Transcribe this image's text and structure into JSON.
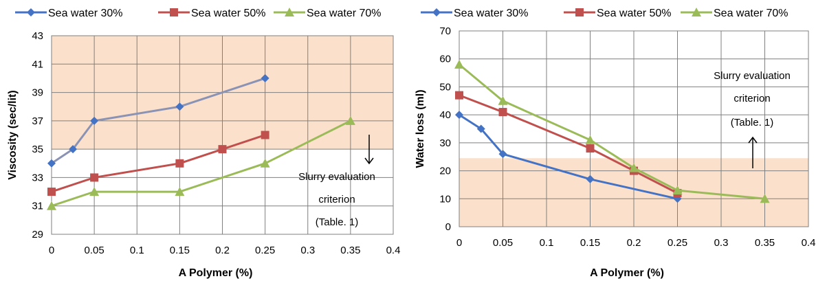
{
  "chart_data": [
    {
      "type": "line",
      "title": "",
      "xlabel": "A Polymer (%)",
      "ylabel": "Viscosity (sec/lit)",
      "xlim": [
        0,
        0.4
      ],
      "ylim": [
        29,
        43
      ],
      "x_ticks": [
        "0",
        "0.05",
        "0.1",
        "0.15",
        "0.2",
        "0.25",
        "0.3",
        "0.35",
        "0.4"
      ],
      "y_ticks": [
        "29",
        "31",
        "33",
        "35",
        "37",
        "39",
        "41",
        "43"
      ],
      "grid": true,
      "legend_position": "top",
      "shaded_region": {
        "y_from": 35,
        "y_to": 43,
        "color": "#fbe0cb"
      },
      "annotation": {
        "lines": [
          "Slurry evaluation",
          "criterion",
          "(Table. 1)"
        ],
        "arrow": "down"
      },
      "series": [
        {
          "name": "Sea water  30%",
          "legend_color": "#4472c4",
          "line_color": "#8b93b5",
          "marker": "diamond",
          "marker_color": "#4472c4",
          "x": [
            0,
            0.025,
            0.05,
            0.15,
            0.25
          ],
          "y": [
            34,
            35,
            37,
            38,
            40
          ]
        },
        {
          "name": "Sea water 50%",
          "legend_color": "#c0504d",
          "line_color": "#c0504d",
          "marker": "square",
          "marker_color": "#c0504d",
          "x": [
            0,
            0.05,
            0.15,
            0.2,
            0.25
          ],
          "y": [
            32,
            33,
            34,
            35,
            36
          ]
        },
        {
          "name": "Sea water 70%",
          "legend_color": "#9bbb59",
          "line_color": "#9bbb59",
          "marker": "triangle",
          "marker_color": "#9bbb59",
          "x": [
            0,
            0.05,
            0.15,
            0.25,
            0.35
          ],
          "y": [
            31,
            32,
            32,
            34,
            37
          ]
        }
      ]
    },
    {
      "type": "line",
      "title": "",
      "xlabel": "A Polymer (%)",
      "ylabel": "Water loss (ml)",
      "xlim": [
        0,
        0.4
      ],
      "ylim": [
        0,
        70
      ],
      "x_ticks": [
        "0",
        "0.05",
        "0.1",
        "0.15",
        "0.2",
        "0.25",
        "0.3",
        "0.35",
        "0.4"
      ],
      "y_ticks": [
        "0",
        "10",
        "20",
        "30",
        "40",
        "50",
        "60",
        "70"
      ],
      "grid": true,
      "legend_position": "top",
      "shaded_region": {
        "y_from": 0,
        "y_to": 24.5,
        "color": "#fbe0cb"
      },
      "annotation": {
        "lines": [
          "Slurry evaluation",
          "criterion",
          "(Table. 1)"
        ],
        "arrow": "up"
      },
      "series": [
        {
          "name": "Sea water  30%",
          "legend_color": "#4472c4",
          "line_color": "#4472c4",
          "marker": "diamond",
          "marker_color": "#4472c4",
          "x": [
            0,
            0.025,
            0.05,
            0.15,
            0.25
          ],
          "y": [
            40,
            35,
            26,
            17,
            10
          ]
        },
        {
          "name": "Sea water 50%",
          "legend_color": "#c0504d",
          "line_color": "#c0504d",
          "marker": "square",
          "marker_color": "#c0504d",
          "x": [
            0,
            0.05,
            0.15,
            0.2,
            0.25
          ],
          "y": [
            47,
            41,
            28,
            20,
            12
          ]
        },
        {
          "name": "Sea water 70%",
          "legend_color": "#9bbb59",
          "line_color": "#9bbb59",
          "marker": "triangle",
          "marker_color": "#9bbb59",
          "x": [
            0,
            0.05,
            0.15,
            0.2,
            0.25,
            0.35
          ],
          "y": [
            58,
            45,
            31,
            21,
            13,
            10
          ]
        }
      ]
    }
  ]
}
